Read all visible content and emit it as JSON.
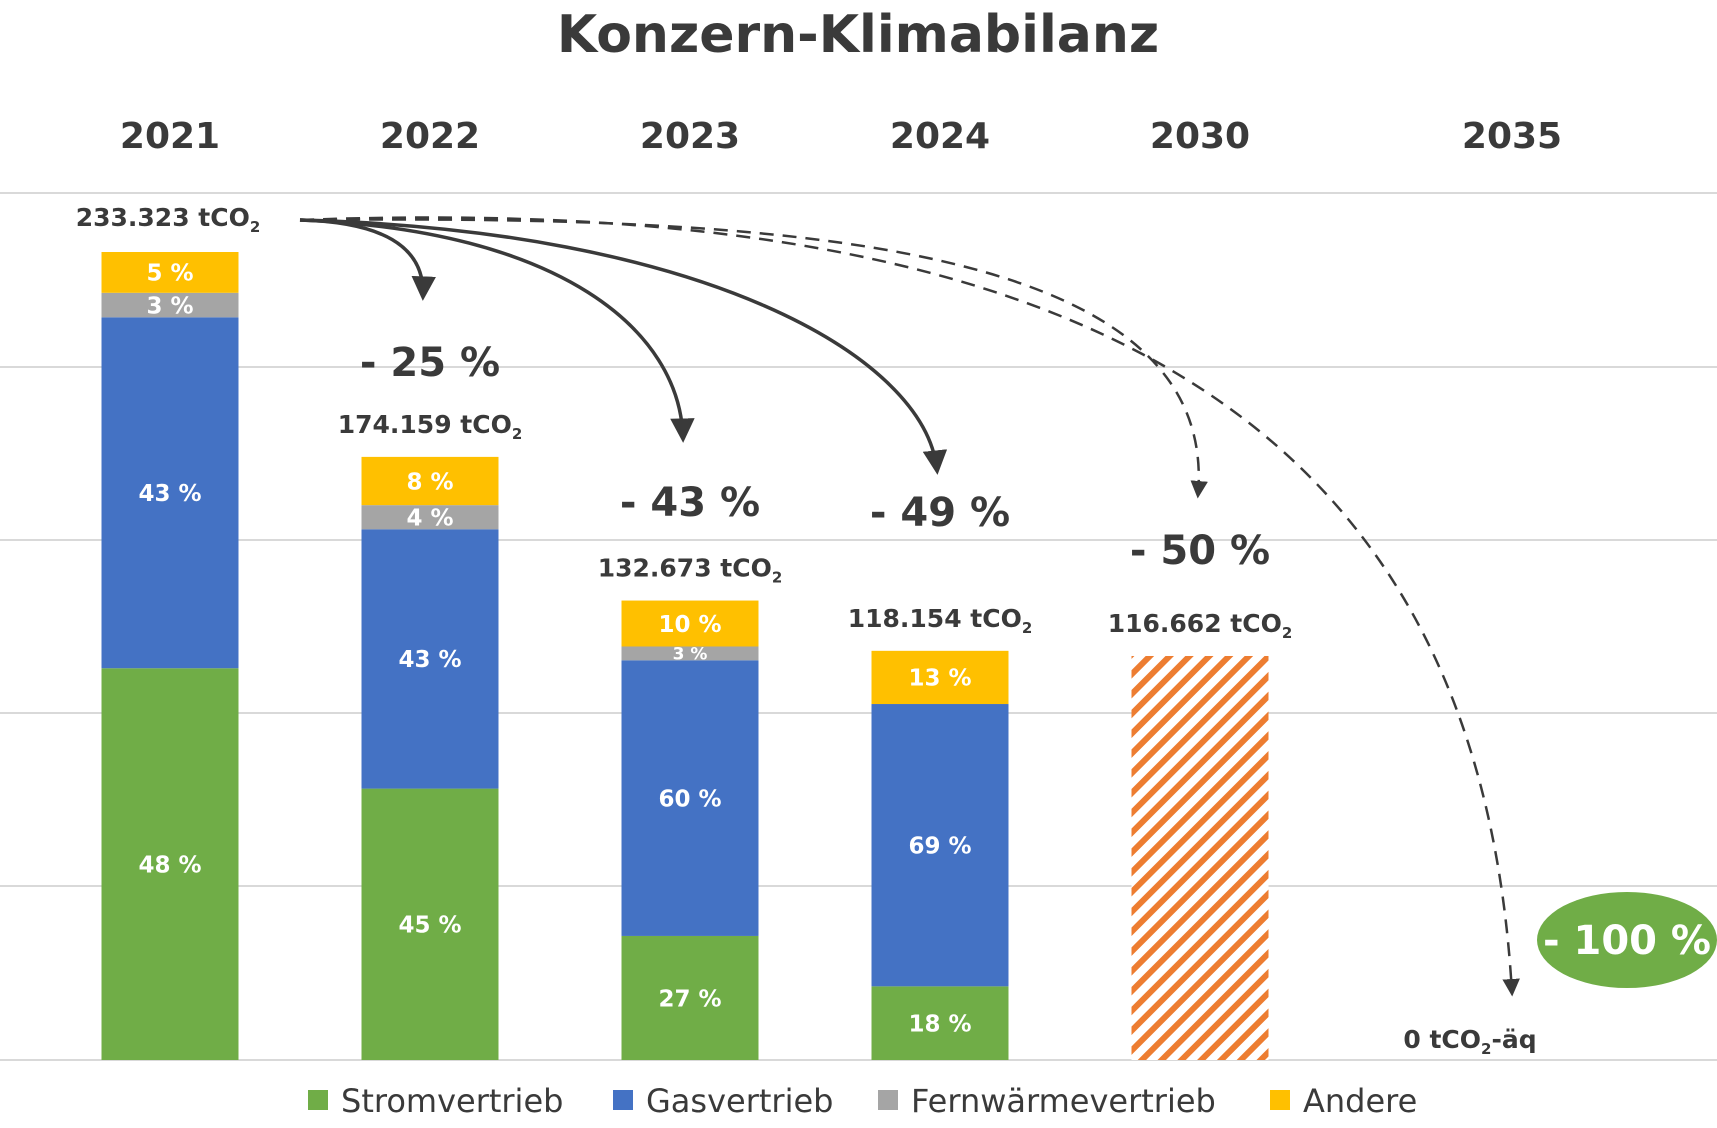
{
  "chart_data": {
    "type": "bar",
    "title": "Konzern-Klimabilanz",
    "categories": [
      "2021",
      "2022",
      "2023",
      "2024",
      "2030",
      "2035"
    ],
    "totals": [
      "233.323 tCO2",
      "174.159 tCO₂",
      "132.673 tCO₂",
      "118.154 tCO₂",
      "116.662 tCO₂",
      "0 tCO2-äq"
    ],
    "total_values": [
      233323,
      174159,
      132673,
      118154,
      116662,
      0
    ],
    "series": [
      {
        "name": "Stromvertrieb",
        "color": "#70ad47",
        "values": [
          48,
          45,
          27,
          18,
          null,
          null
        ],
        "labels": [
          "48 %",
          "45 %",
          "27 %",
          "18 %",
          "",
          ""
        ]
      },
      {
        "name": "Gasvertrieb",
        "color": "#4472c4",
        "values": [
          43,
          43,
          60,
          69,
          null,
          null
        ],
        "labels": [
          "43 %",
          "43 %",
          "60 %",
          "69 %",
          "",
          ""
        ]
      },
      {
        "name": "Fernwärmevertrieb",
        "color": "#a5a5a5",
        "values": [
          3,
          4,
          3,
          0,
          null,
          null
        ],
        "labels": [
          "3 %",
          "4 %",
          "3 %",
          "",
          "",
          ""
        ]
      },
      {
        "name": "Andere",
        "color": "#ffc000",
        "values": [
          5,
          8,
          10,
          13,
          null,
          null
        ],
        "labels": [
          "5 %",
          "8 %",
          "10 %",
          "13 %",
          "",
          ""
        ]
      }
    ],
    "target_bar": {
      "category": "2030",
      "pattern": "hatched",
      "color": "#ed7d31"
    },
    "reductions": [
      {
        "category": "2022",
        "label": "-  25 %",
        "style": "solid"
      },
      {
        "category": "2023",
        "label": "-  43 %",
        "style": "solid"
      },
      {
        "category": "2024",
        "label": "-  49 %",
        "style": "solid"
      },
      {
        "category": "2030",
        "label": "-  50 %",
        "style": "dashed"
      },
      {
        "category": "2035",
        "label": "-  100 %",
        "style": "dashed",
        "badge": true,
        "badge_color": "#70ad47"
      }
    ],
    "grid": true,
    "legend_position": "bottom"
  }
}
